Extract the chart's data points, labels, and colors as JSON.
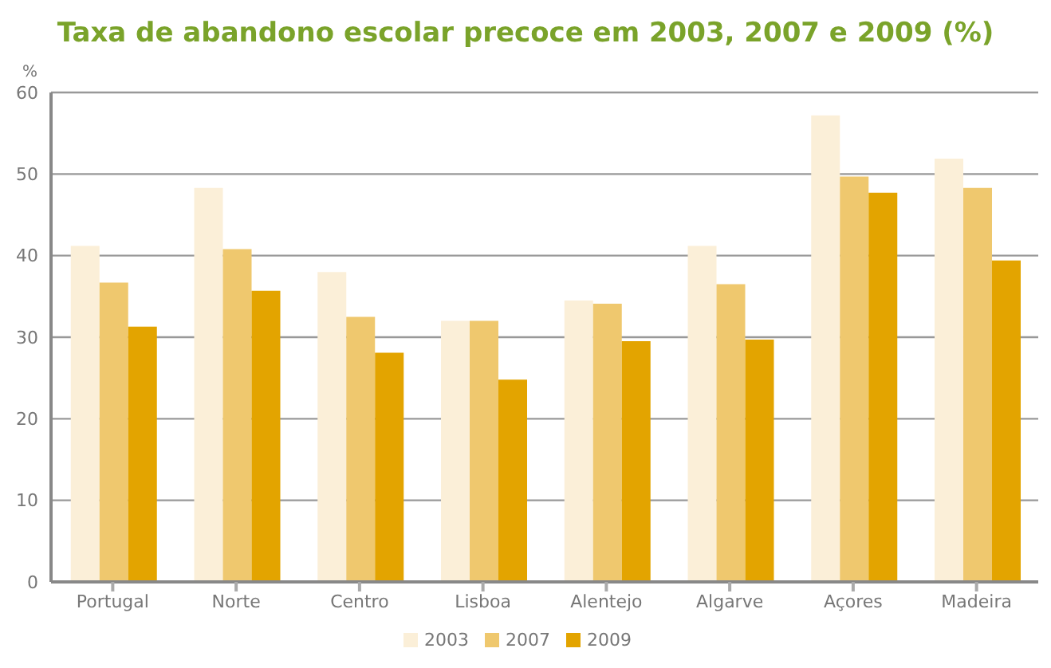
{
  "chart_data": {
    "type": "bar",
    "title": "Taxa de abandono escolar precoce em 2003, 2007 e 2009 (%)",
    "ylabel": "%",
    "categories": [
      "Portugal",
      "Norte",
      "Centro",
      "Lisboa",
      "Alentejo",
      "Algarve",
      "Açores",
      "Madeira"
    ],
    "series": [
      {
        "name": "2003",
        "color": "#fbefd8",
        "values": [
          41.2,
          48.3,
          38.0,
          32.0,
          34.5,
          41.2,
          57.2,
          51.9
        ]
      },
      {
        "name": "2007",
        "color": "#efc86e",
        "values": [
          36.7,
          40.8,
          32.5,
          32.0,
          34.1,
          36.5,
          49.7,
          48.3
        ]
      },
      {
        "name": "2009",
        "color": "#e3a400",
        "values": [
          31.3,
          35.7,
          28.1,
          24.8,
          29.5,
          29.7,
          47.7,
          39.4
        ]
      }
    ],
    "ylim": [
      0,
      60
    ],
    "yticks": [
      0,
      10,
      20,
      30,
      40,
      50,
      60
    ],
    "grid": "y",
    "legend": "bottom"
  }
}
